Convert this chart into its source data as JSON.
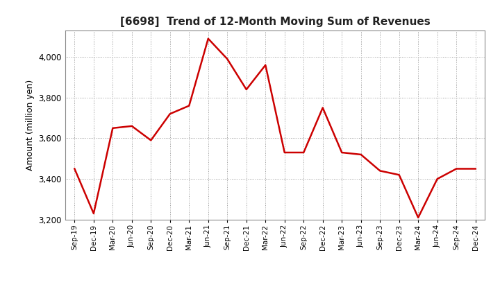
{
  "title": "[6698]  Trend of 12-Month Moving Sum of Revenues",
  "ylabel": "Amount (million yen)",
  "line_color": "#cc0000",
  "background_color": "#ffffff",
  "plot_bg_color": "#ffffff",
  "grid_color": "#999999",
  "ylim": [
    3200,
    4130
  ],
  "yticks": [
    3200,
    3400,
    3600,
    3800,
    4000
  ],
  "x_labels": [
    "Sep-19",
    "Dec-19",
    "Mar-20",
    "Jun-20",
    "Sep-20",
    "Dec-20",
    "Mar-21",
    "Jun-21",
    "Sep-21",
    "Dec-21",
    "Mar-22",
    "Jun-22",
    "Sep-22",
    "Dec-22",
    "Mar-23",
    "Jun-23",
    "Sep-23",
    "Dec-23",
    "Mar-24",
    "Jun-24",
    "Sep-24",
    "Dec-24"
  ],
  "values": [
    3450,
    3230,
    3650,
    3660,
    3590,
    3720,
    3760,
    4090,
    3990,
    3840,
    3960,
    3530,
    3530,
    3750,
    3530,
    3520,
    3440,
    3420,
    3210,
    3400,
    3450,
    3450
  ]
}
